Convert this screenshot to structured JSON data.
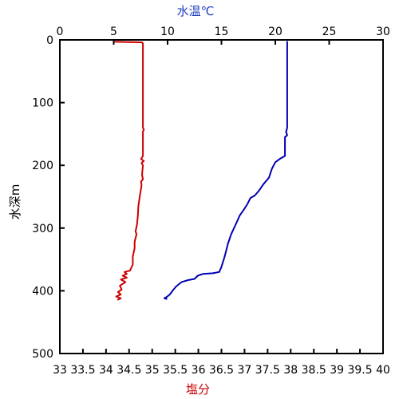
{
  "chart_data": {
    "type": "line",
    "title": "",
    "y_axis": {
      "label": "水深m",
      "range": [
        0,
        500
      ],
      "inverted": true,
      "ticks": [
        0,
        100,
        200,
        300,
        400,
        500
      ]
    },
    "x_axis_top": {
      "label": "水温℃",
      "label_color": "#1f3fbf",
      "range": [
        0,
        30
      ],
      "ticks": [
        0,
        5,
        10,
        15,
        20,
        25,
        30
      ]
    },
    "x_axis_bottom": {
      "label": "塩分",
      "label_color": "#cc0000",
      "range": [
        33,
        40
      ],
      "ticks": [
        "33",
        "33.5",
        "34",
        "34.5",
        "35",
        "35.5",
        "36",
        "36.5",
        "37",
        "37.5",
        "38",
        "38.5",
        "39",
        "39.5",
        "40"
      ]
    },
    "grid": false,
    "series": [
      {
        "key": "salinity",
        "axis": "bottom",
        "color": "#cc0000",
        "points": [
          [
            34.2,
            3
          ],
          [
            34.78,
            4
          ],
          [
            34.8,
            6
          ],
          [
            34.8,
            50
          ],
          [
            34.8,
            100
          ],
          [
            34.8,
            140
          ],
          [
            34.82,
            143
          ],
          [
            34.8,
            146
          ],
          [
            34.8,
            185
          ],
          [
            34.76,
            190
          ],
          [
            34.82,
            193
          ],
          [
            34.77,
            196
          ],
          [
            34.8,
            200
          ],
          [
            34.78,
            215
          ],
          [
            34.8,
            222
          ],
          [
            34.76,
            226
          ],
          [
            34.77,
            232
          ],
          [
            34.73,
            250
          ],
          [
            34.7,
            265
          ],
          [
            34.69,
            280
          ],
          [
            34.67,
            295
          ],
          [
            34.64,
            305
          ],
          [
            34.66,
            310
          ],
          [
            34.62,
            322
          ],
          [
            34.62,
            332
          ],
          [
            34.58,
            345
          ],
          [
            34.58,
            358
          ],
          [
            34.52,
            368
          ],
          [
            34.4,
            370
          ],
          [
            34.45,
            373
          ],
          [
            34.36,
            376
          ],
          [
            34.45,
            379
          ],
          [
            34.32,
            382
          ],
          [
            34.42,
            386
          ],
          [
            34.3,
            392
          ],
          [
            34.34,
            398
          ],
          [
            34.26,
            402
          ],
          [
            34.32,
            406
          ],
          [
            34.22,
            409
          ],
          [
            34.32,
            412
          ],
          [
            34.26,
            414
          ]
        ]
      },
      {
        "key": "temperature",
        "axis": "top",
        "color": "#0000b4",
        "points": [
          [
            21.1,
            3
          ],
          [
            21.1,
            50
          ],
          [
            21.1,
            100
          ],
          [
            21.1,
            140
          ],
          [
            21.0,
            147
          ],
          [
            21.1,
            152
          ],
          [
            20.9,
            155
          ],
          [
            20.9,
            185
          ],
          [
            20.4,
            190
          ],
          [
            20.0,
            195
          ],
          [
            19.7,
            205
          ],
          [
            19.4,
            220
          ],
          [
            18.9,
            230
          ],
          [
            18.5,
            240
          ],
          [
            18.1,
            248
          ],
          [
            17.7,
            252
          ],
          [
            17.4,
            262
          ],
          [
            17.1,
            270
          ],
          [
            16.7,
            280
          ],
          [
            16.3,
            295
          ],
          [
            15.9,
            310
          ],
          [
            15.6,
            325
          ],
          [
            15.3,
            345
          ],
          [
            15.0,
            362
          ],
          [
            14.8,
            370
          ],
          [
            14.2,
            372
          ],
          [
            13.3,
            373
          ],
          [
            12.8,
            376
          ],
          [
            12.5,
            381
          ],
          [
            11.9,
            383
          ],
          [
            11.3,
            386
          ],
          [
            10.8,
            393
          ],
          [
            10.5,
            399
          ],
          [
            10.2,
            406
          ],
          [
            9.9,
            410
          ],
          [
            9.7,
            412
          ],
          [
            9.9,
            413
          ]
        ]
      }
    ]
  }
}
